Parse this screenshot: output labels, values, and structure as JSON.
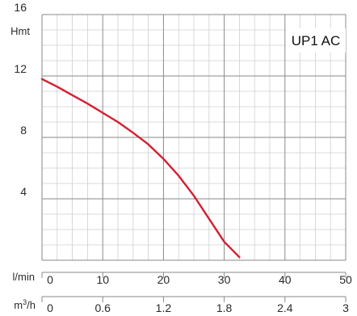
{
  "chart_data": {
    "type": "line",
    "title": "UP1 AC",
    "y_axis": {
      "unit": "Hmt",
      "ticks": [
        "4",
        "8",
        "12",
        "16"
      ],
      "tick_values": [
        4,
        8,
        12,
        16
      ],
      "range": [
        0,
        16
      ]
    },
    "x_axis_primary": {
      "unit": "l/min",
      "ticks": [
        "0",
        "10",
        "20",
        "30",
        "40",
        "50"
      ],
      "tick_values": [
        0,
        10,
        20,
        30,
        40,
        50
      ],
      "range": [
        0,
        50
      ]
    },
    "x_axis_secondary": {
      "unit_base": "m",
      "unit_sup": "3",
      "unit_tail": "/h",
      "ticks": [
        "0",
        "0.6",
        "1.2",
        "1.8",
        "2.4",
        "3"
      ],
      "range": [
        0,
        3
      ]
    },
    "grid": true,
    "series": [
      {
        "color": "#d42030",
        "x": [
          0,
          2.5,
          5,
          7.5,
          10,
          12.5,
          15,
          17.5,
          20,
          22.5,
          25,
          27.5,
          30,
          32.5
        ],
        "y": [
          11.8,
          11.3,
          10.75,
          10.2,
          9.6,
          9.0,
          8.3,
          7.55,
          6.6,
          5.5,
          4.2,
          2.7,
          1.2,
          0.2
        ]
      }
    ]
  }
}
